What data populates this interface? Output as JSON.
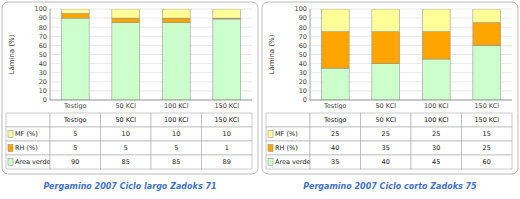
{
  "chart_data": [
    {
      "type": "bar",
      "stacked": true,
      "grid": true,
      "title": "Pergamino 2007 Ciclo largo Zadoks 71",
      "ylabel": "Lámina (%)",
      "categories": [
        "Testigo",
        "50 KCl",
        "100 KCl",
        "150 KCl"
      ],
      "series": [
        {
          "name": "Area verde",
          "color": "#CCFFCC",
          "values": [
            90,
            85,
            85,
            89
          ]
        },
        {
          "name": "RH (%)",
          "color": "#FFA500",
          "values": [
            5,
            5,
            5,
            1
          ]
        },
        {
          "name": "MF (%)",
          "color": "#FFFF99",
          "values": [
            5,
            10,
            10,
            10
          ]
        }
      ],
      "ylim": [
        0,
        100
      ],
      "yticks": [
        0,
        10,
        20,
        30,
        40,
        50,
        60,
        70,
        80,
        90,
        100
      ]
    },
    {
      "type": "bar",
      "stacked": true,
      "grid": true,
      "title": "Pergamino 2007 Ciclo corto Zadoks 75",
      "ylabel": "Lámina (%)",
      "categories": [
        "Testigo",
        "50 KCl",
        "100 KCl",
        "150 KCl"
      ],
      "series": [
        {
          "name": "Area verde",
          "color": "#CCFFCC",
          "values": [
            35,
            40,
            45,
            60
          ]
        },
        {
          "name": "RH (%)",
          "color": "#FFA500",
          "values": [
            40,
            35,
            30,
            25
          ]
        },
        {
          "name": "MF (%)",
          "color": "#FFFF99",
          "values": [
            25,
            25,
            25,
            15
          ]
        }
      ],
      "ylim": [
        0,
        100
      ],
      "yticks": [
        0,
        10,
        20,
        30,
        40,
        50,
        60,
        70,
        80,
        90,
        100
      ]
    }
  ]
}
